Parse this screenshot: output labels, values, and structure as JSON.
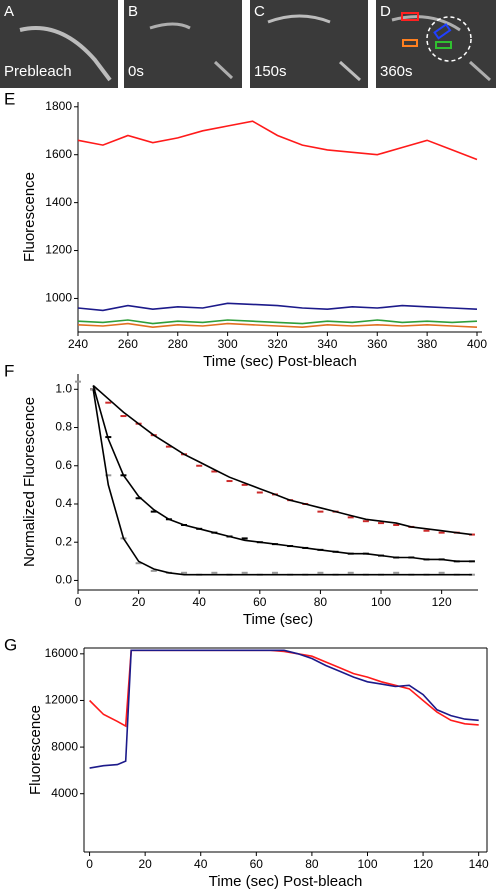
{
  "images": [
    {
      "letter": "A",
      "caption": "Prebleach"
    },
    {
      "letter": "B",
      "caption": "0s"
    },
    {
      "letter": "C",
      "caption": "150s"
    },
    {
      "letter": "D",
      "caption": "360s"
    }
  ],
  "chart_data": [
    {
      "type": "line",
      "panel_label": "E",
      "xlabel": "Time (sec) Post-bleach",
      "ylabel": "Fluorescence",
      "x": [
        240,
        250,
        260,
        270,
        280,
        290,
        300,
        310,
        320,
        330,
        340,
        350,
        360,
        370,
        380,
        390,
        400
      ],
      "series": [
        {
          "color": "#ff1a1a",
          "values": [
            1660,
            1640,
            1680,
            1650,
            1670,
            1700,
            1720,
            1740,
            1680,
            1640,
            1620,
            1610,
            1600,
            1630,
            1660,
            1620,
            1580
          ]
        },
        {
          "color": "#1c1a8a",
          "values": [
            960,
            950,
            970,
            955,
            965,
            960,
            980,
            975,
            970,
            960,
            955,
            965,
            960,
            970,
            965,
            960,
            955
          ]
        },
        {
          "color": "#e07020",
          "values": [
            890,
            885,
            895,
            880,
            890,
            885,
            895,
            890,
            885,
            880,
            890,
            885,
            890,
            885,
            890,
            885,
            880
          ]
        },
        {
          "color": "#2e9e3a",
          "values": [
            905,
            900,
            910,
            895,
            905,
            900,
            910,
            905,
            900,
            895,
            905,
            900,
            910,
            900,
            905,
            900,
            905
          ]
        }
      ],
      "xlim": [
        240,
        402
      ],
      "ylim": [
        860,
        1820
      ],
      "xticks": [
        240,
        260,
        280,
        300,
        320,
        340,
        360,
        380,
        400
      ],
      "yticks": [
        1000,
        1200,
        1400,
        1600,
        1800
      ]
    },
    {
      "type": "scatter",
      "panel_label": "F",
      "xlabel": "Time (sec)",
      "ylabel": "Normalized Fluorescence",
      "x": [
        0,
        5,
        10,
        15,
        20,
        25,
        30,
        35,
        40,
        45,
        50,
        55,
        60,
        65,
        70,
        75,
        80,
        85,
        90,
        95,
        100,
        105,
        110,
        115,
        120,
        125,
        130
      ],
      "series": [
        {
          "color": "#cc2a2a",
          "style": "points",
          "values": [
            null,
            1.0,
            0.93,
            0.86,
            0.82,
            0.76,
            0.7,
            0.66,
            0.6,
            0.57,
            0.52,
            0.5,
            0.46,
            0.45,
            0.42,
            0.4,
            0.36,
            0.36,
            0.33,
            0.31,
            0.3,
            0.29,
            0.28,
            0.26,
            0.25,
            0.25,
            0.24
          ]
        },
        {
          "color": "#000000",
          "style": "points",
          "values": [
            null,
            1.0,
            0.75,
            0.55,
            0.43,
            0.36,
            0.32,
            0.29,
            0.27,
            0.25,
            0.23,
            0.22,
            0.2,
            0.19,
            0.18,
            0.17,
            0.16,
            0.15,
            0.14,
            0.14,
            0.13,
            0.12,
            0.12,
            0.11,
            0.11,
            0.1,
            0.1
          ]
        },
        {
          "color": "#999999",
          "style": "points",
          "values": [
            1.04,
            1.0,
            0.55,
            0.22,
            0.09,
            0.05,
            0.04,
            0.04,
            0.03,
            0.04,
            0.03,
            0.04,
            0.03,
            0.04,
            0.03,
            0.03,
            0.04,
            0.03,
            0.04,
            0.03,
            0.03,
            0.04,
            0.03,
            0.03,
            0.04,
            0.03,
            0.03
          ]
        },
        {
          "color": "#000000",
          "style": "line",
          "values": [
            null,
            1.02,
            0.95,
            0.88,
            0.82,
            0.76,
            0.71,
            0.66,
            0.62,
            0.58,
            0.54,
            0.51,
            0.48,
            0.45,
            0.42,
            0.4,
            0.38,
            0.36,
            0.34,
            0.32,
            0.31,
            0.3,
            0.28,
            0.27,
            0.26,
            0.25,
            0.24
          ]
        },
        {
          "color": "#000000",
          "style": "line",
          "values": [
            null,
            1.02,
            0.74,
            0.55,
            0.44,
            0.37,
            0.32,
            0.29,
            0.27,
            0.25,
            0.23,
            0.21,
            0.2,
            0.19,
            0.18,
            0.17,
            0.16,
            0.15,
            0.14,
            0.14,
            0.13,
            0.12,
            0.12,
            0.11,
            0.11,
            0.1,
            0.1
          ]
        },
        {
          "color": "#000000",
          "style": "line",
          "values": [
            null,
            1.0,
            0.5,
            0.22,
            0.1,
            0.06,
            0.04,
            0.03,
            0.03,
            0.03,
            0.03,
            0.03,
            0.03,
            0.03,
            0.03,
            0.03,
            0.03,
            0.03,
            0.03,
            0.03,
            0.03,
            0.03,
            0.03,
            0.03,
            0.03,
            0.03,
            0.03
          ]
        }
      ],
      "xlim": [
        0,
        132
      ],
      "ylim": [
        -0.05,
        1.08
      ],
      "xticks": [
        0,
        20,
        40,
        60,
        80,
        100,
        120
      ],
      "yticks": [
        {
          "value": 0,
          "label": "0.0"
        },
        0.2,
        0.4,
        0.6,
        0.8,
        {
          "value": 1,
          "label": "1.0"
        }
      ]
    },
    {
      "type": "line",
      "panel_label": "G",
      "xlabel": "Time (sec) Post-bleach",
      "ylabel": "Fluorescence",
      "box": true,
      "x": [
        0,
        5,
        10,
        13,
        15,
        20,
        25,
        30,
        35,
        40,
        45,
        50,
        55,
        60,
        65,
        70,
        75,
        80,
        85,
        90,
        95,
        100,
        105,
        110,
        115,
        120,
        125,
        130,
        135,
        140
      ],
      "series": [
        {
          "color": "#ff1a1a",
          "values": [
            12000,
            10800,
            10200,
            9800,
            16300,
            16300,
            16300,
            16300,
            16300,
            16300,
            16300,
            16300,
            16300,
            16300,
            16300,
            16200,
            16000,
            15800,
            15300,
            14800,
            14300,
            14000,
            13600,
            13300,
            13000,
            12000,
            11000,
            10300,
            10000,
            9900
          ]
        },
        {
          "color": "#1c1a8a",
          "values": [
            6200,
            6400,
            6500,
            6800,
            16300,
            16300,
            16300,
            16300,
            16300,
            16300,
            16300,
            16300,
            16300,
            16300,
            16300,
            16300,
            16000,
            15600,
            15000,
            14500,
            14000,
            13600,
            13400,
            13200,
            13300,
            12500,
            11200,
            10700,
            10400,
            10300
          ]
        }
      ],
      "xlim": [
        -2,
        143
      ],
      "ylim": [
        -1000,
        16500
      ],
      "xticks": [
        0,
        20,
        40,
        60,
        80,
        100,
        120,
        140
      ],
      "yticks": [
        4000,
        8000,
        12000,
        16000
      ]
    }
  ]
}
